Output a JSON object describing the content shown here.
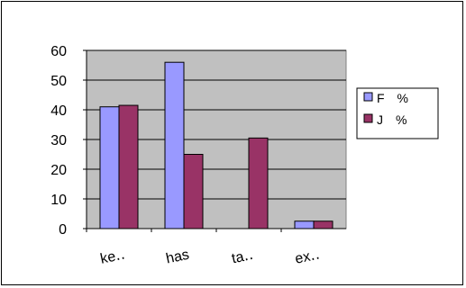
{
  "chart_data": {
    "type": "bar",
    "categories": [
      "ke‥",
      "has",
      "ta‥",
      "ex‥"
    ],
    "series": [
      {
        "name": "F　%",
        "values": [
          41,
          56,
          0,
          2.5
        ],
        "color": "#9999ff"
      },
      {
        "name": "J　%",
        "values": [
          41.5,
          25,
          30.5,
          2.5
        ],
        "color": "#993366"
      }
    ],
    "ylim": [
      0,
      60
    ],
    "yticks": [
      0,
      10,
      20,
      30,
      40,
      50,
      60
    ],
    "grid": true,
    "plot_background": "#c0c0c0",
    "legend": "right"
  }
}
